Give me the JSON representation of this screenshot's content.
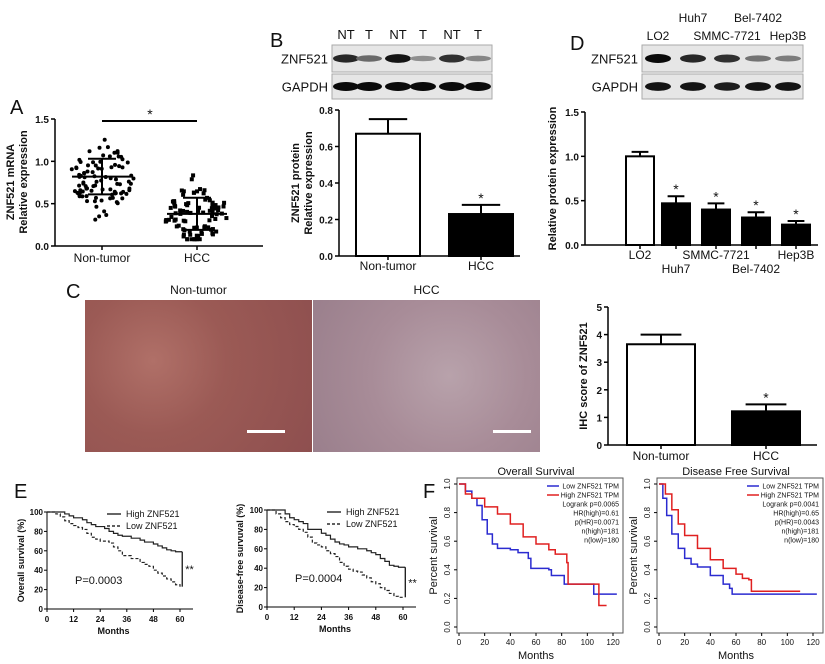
{
  "panel_labels": {
    "A": "A",
    "B": "B",
    "C": "C",
    "D": "D",
    "E": "E",
    "F": "F"
  },
  "colors": {
    "low_tpm": "#2b2bd0",
    "high_tpm": "#e02020",
    "ihc_normal": "#9b5a55",
    "ihc_hcc": "#a88c98",
    "bar_fill_treated": "#000000",
    "bar_fill_control": "#ffffff"
  },
  "blot_B": {
    "lane_labels": [
      "NT",
      "T",
      "NT",
      "T",
      "NT",
      "T"
    ],
    "rows": [
      {
        "label": "ZNF521",
        "intensity": [
          0.85,
          0.5,
          0.95,
          0.3,
          0.8,
          0.35
        ]
      },
      {
        "label": "GAPDH",
        "intensity": [
          1,
          1,
          1,
          1,
          1,
          1
        ]
      }
    ]
  },
  "blot_D": {
    "lane_labels": [
      "LO2",
      "Huh7",
      "SMMC-7721",
      "Bel-7402",
      "Hep3B"
    ],
    "rows": [
      {
        "label": "ZNF521",
        "intensity": [
          1,
          0.85,
          0.8,
          0.45,
          0.4
        ]
      },
      {
        "label": "GAPDH",
        "intensity": [
          0.95,
          0.95,
          0.9,
          0.95,
          0.95
        ]
      }
    ]
  },
  "ihc": {
    "labels": [
      "Non-tumor",
      "HCC"
    ]
  },
  "chart_data": [
    {
      "id": "A",
      "type": "scatter",
      "ylabel": [
        "ZNF521 mRNA",
        "Relative  expression"
      ],
      "categories": [
        "Non-tumor",
        "HCC"
      ],
      "ylim": [
        0,
        1.5
      ],
      "yticks": [
        "0.0",
        "0.5",
        "1.0",
        "1.5"
      ],
      "groups": [
        {
          "mean": 0.82,
          "sd": 0.21,
          "min": 0.31,
          "max": 1.38,
          "marker": "circle"
        },
        {
          "mean": 0.38,
          "sd": 0.19,
          "min": 0.08,
          "max": 0.9,
          "marker": "square"
        }
      ],
      "significance": "*"
    },
    {
      "id": "B",
      "type": "bar",
      "ylabel": [
        "ZNF521 protein",
        "Relative  expression"
      ],
      "categories": [
        "Non-tumor",
        "HCC"
      ],
      "values": [
        0.67,
        0.23
      ],
      "errors": [
        0.08,
        0.05
      ],
      "fills": [
        "white",
        "black"
      ],
      "ylim": [
        0,
        0.8
      ],
      "yticks": [
        "0.0",
        "0.2",
        "0.4",
        "0.6",
        "0.8"
      ],
      "annotations": [
        "",
        "*"
      ]
    },
    {
      "id": "D",
      "type": "bar",
      "ylabel": [
        "Relative protein expression"
      ],
      "categories": [
        "LO2",
        "Huh7",
        "SMMC-7721",
        "Bel-7402",
        "Hep3B"
      ],
      "values": [
        1.0,
        0.47,
        0.4,
        0.31,
        0.23
      ],
      "errors": [
        0.05,
        0.08,
        0.07,
        0.06,
        0.04
      ],
      "fills": [
        "white",
        "black",
        "black",
        "black",
        "black"
      ],
      "ylim": [
        0,
        1.5
      ],
      "yticks": [
        "0.0",
        "0.5",
        "1.0",
        "1.5"
      ],
      "annotations": [
        "",
        "*",
        "*",
        "*",
        "*"
      ]
    },
    {
      "id": "C",
      "type": "bar",
      "ylabel": [
        "IHC score of ZNF521"
      ],
      "categories": [
        "Non-tumor",
        "HCC"
      ],
      "values": [
        3.65,
        1.22
      ],
      "errors": [
        0.35,
        0.25
      ],
      "fills": [
        "white",
        "black"
      ],
      "ylim": [
        0,
        5
      ],
      "yticks": [
        "0",
        "1",
        "2",
        "3",
        "4",
        "5"
      ],
      "annotations": [
        "",
        "*"
      ]
    },
    {
      "id": "E1",
      "type": "line",
      "ylabel": "Overall survival (%)",
      "xlabel": "Months",
      "xlim": [
        0,
        60
      ],
      "ylim": [
        0,
        100
      ],
      "xticks": [
        "0",
        "12",
        "24",
        "36",
        "48",
        "60"
      ],
      "yticks": [
        "0",
        "20",
        "40",
        "60",
        "80",
        "100"
      ],
      "pvalue": "P=0.0003",
      "significance": "**",
      "legend": "top-right",
      "series": [
        {
          "name": "High ZNF521",
          "style": "solid",
          "x": [
            0,
            6,
            8,
            10,
            12,
            16,
            18,
            20,
            22,
            26,
            28,
            30,
            32,
            34,
            38,
            42,
            44,
            48,
            50,
            52,
            54,
            56,
            58,
            61
          ],
          "y": [
            100,
            100,
            98,
            96,
            94,
            92,
            89,
            87,
            85,
            83,
            80,
            78,
            76,
            75,
            73,
            71,
            69,
            67,
            65,
            63,
            61,
            60,
            59,
            59
          ]
        },
        {
          "name": "Low ZNF521",
          "style": "dashed",
          "x": [
            0,
            4,
            6,
            8,
            10,
            12,
            14,
            16,
            18,
            20,
            22,
            24,
            28,
            30,
            32,
            34,
            38,
            42,
            44,
            46,
            48,
            50,
            52,
            54,
            56,
            58,
            60
          ],
          "y": [
            100,
            98,
            95,
            91,
            88,
            86,
            84,
            82,
            78,
            74,
            72,
            70,
            68,
            64,
            60,
            55,
            52,
            48,
            46,
            44,
            40,
            37,
            34,
            31,
            28,
            25,
            23
          ]
        }
      ]
    },
    {
      "id": "E2",
      "type": "line",
      "ylabel": "Disease-free survuval (%)",
      "xlabel": "Months",
      "xlim": [
        0,
        60
      ],
      "ylim": [
        0,
        100
      ],
      "xticks": [
        "0",
        "12",
        "24",
        "36",
        "48",
        "60"
      ],
      "yticks": [
        "0",
        "20",
        "40",
        "60",
        "80",
        "100"
      ],
      "pvalue": "P=0.0004",
      "significance": "**",
      "legend": "top-right",
      "series": [
        {
          "name": "High ZNF521",
          "style": "solid",
          "x": [
            0,
            8,
            10,
            12,
            14,
            16,
            18,
            22,
            24,
            26,
            28,
            30,
            32,
            34,
            36,
            40,
            44,
            46,
            48,
            50,
            52,
            54,
            56,
            58,
            61
          ],
          "y": [
            100,
            96,
            92,
            90,
            88,
            86,
            80,
            80,
            76,
            74,
            70,
            67,
            65,
            64,
            62,
            60,
            58,
            56,
            54,
            50,
            47,
            43,
            42,
            41,
            41
          ]
        },
        {
          "name": "Low ZNF521",
          "style": "dashed",
          "x": [
            0,
            4,
            6,
            8,
            10,
            12,
            14,
            16,
            18,
            20,
            22,
            24,
            26,
            28,
            30,
            32,
            34,
            36,
            38,
            40,
            42,
            44,
            46,
            48,
            50,
            52,
            54,
            56,
            58,
            60
          ],
          "y": [
            100,
            96,
            92,
            88,
            85,
            83,
            80,
            77,
            72,
            66,
            64,
            62,
            58,
            55,
            52,
            46,
            42,
            39,
            37,
            36,
            33,
            30,
            26,
            24,
            20,
            17,
            14,
            11,
            10,
            10
          ]
        }
      ]
    },
    {
      "id": "F1",
      "type": "line",
      "title": "Overall Survival",
      "ylabel": "Percent survival",
      "xlabel": "Months",
      "xlim": [
        0,
        125
      ],
      "ylim": [
        0,
        1
      ],
      "xticks": [
        "0",
        "20",
        "40",
        "60",
        "80",
        "100",
        "120"
      ],
      "yticks": [
        "0.0",
        "0.2",
        "0.4",
        "0.6",
        "0.8",
        "1.0"
      ],
      "legend": "top-right",
      "stats": [
        "Logrank p=0.0065",
        "HR(high)=0.61",
        "p(HR)=0.0071",
        "n(high)=181",
        "n(low)=180"
      ],
      "series": [
        {
          "name": "Low ZNF521 TPM",
          "color": "#2b2bd0",
          "x": [
            0,
            5,
            10,
            14,
            18,
            22,
            26,
            30,
            40,
            46,
            54,
            56,
            70,
            72,
            82,
            105,
            123
          ],
          "y": [
            1.0,
            0.95,
            0.9,
            0.85,
            0.75,
            0.65,
            0.58,
            0.55,
            0.54,
            0.52,
            0.48,
            0.41,
            0.4,
            0.36,
            0.3,
            0.23,
            0.23
          ]
        },
        {
          "name": "High ZNF521 TPM",
          "color": "#e02020",
          "x": [
            0,
            5,
            10,
            20,
            30,
            40,
            50,
            60,
            70,
            75,
            84,
            85,
            109,
            115
          ],
          "y": [
            1.0,
            0.93,
            0.9,
            0.84,
            0.79,
            0.72,
            0.63,
            0.58,
            0.54,
            0.51,
            0.45,
            0.3,
            0.15,
            0.15
          ]
        }
      ]
    },
    {
      "id": "F2",
      "type": "line",
      "title": "Disease Free Survival",
      "ylabel": "Percent survival",
      "xlabel": "Months",
      "xlim": [
        0,
        125
      ],
      "ylim": [
        0,
        1
      ],
      "xticks": [
        "0",
        "20",
        "40",
        "60",
        "80",
        "100",
        "120"
      ],
      "yticks": [
        "0.0",
        "0.2",
        "0.4",
        "0.6",
        "0.8",
        "1.0"
      ],
      "legend": "top-right",
      "stats": [
        "Logrank p=0.0041",
        "HR(high)=0.65",
        "p(HR)=0.0043",
        "n(high)=181",
        "n(low)=180"
      ],
      "series": [
        {
          "name": "Low ZNF521 TPM",
          "color": "#2b2bd0",
          "x": [
            0,
            3,
            6,
            10,
            15,
            20,
            25,
            30,
            40,
            50,
            55,
            57,
            123
          ],
          "y": [
            1.0,
            0.9,
            0.78,
            0.65,
            0.55,
            0.48,
            0.44,
            0.42,
            0.36,
            0.3,
            0.27,
            0.23,
            0.23
          ]
        },
        {
          "name": "High ZNF521 TPM",
          "color": "#e02020",
          "x": [
            0,
            5,
            10,
            15,
            20,
            30,
            40,
            50,
            60,
            65,
            70,
            72,
            110
          ],
          "y": [
            1.0,
            0.93,
            0.82,
            0.72,
            0.64,
            0.55,
            0.47,
            0.41,
            0.37,
            0.34,
            0.33,
            0.25,
            0.25
          ]
        }
      ]
    }
  ]
}
